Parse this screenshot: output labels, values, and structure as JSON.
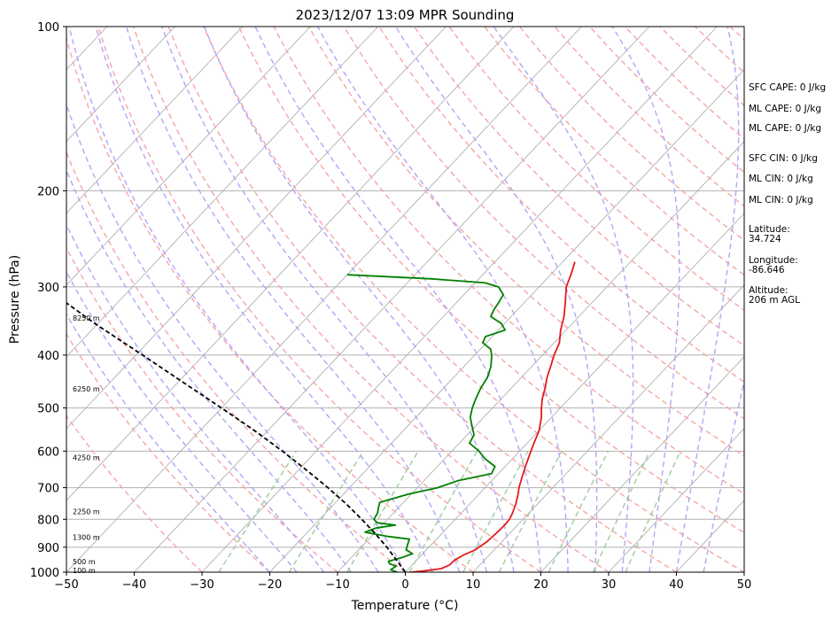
{
  "chart_data": {
    "type": "line",
    "title": "2023/12/07 13:09 MPR Sounding",
    "xlabel": "Temperature (°C)",
    "ylabel": "Pressure (hPa)",
    "xlim": [
      -50,
      50
    ],
    "ylim": [
      1000,
      100
    ],
    "yscale": "log",
    "x_ticks": [
      "−50",
      "−40",
      "−30",
      "−20",
      "−10",
      "0",
      "10",
      "20",
      "30",
      "40",
      "50"
    ],
    "y_ticks": [
      {
        "p": 100,
        "label": "100"
      },
      {
        "p": 200,
        "label": "200"
      },
      {
        "p": 300,
        "label": "300"
      },
      {
        "p": 400,
        "label": "400"
      },
      {
        "p": 500,
        "label": "500"
      },
      {
        "p": 600,
        "label": "600"
      },
      {
        "p": 700,
        "label": "700"
      },
      {
        "p": 800,
        "label": "800"
      },
      {
        "p": 900,
        "label": "900"
      },
      {
        "p": 1000,
        "label": "1000"
      }
    ],
    "grid": true,
    "series": [
      {
        "key": "temperature",
        "color": "#e41a1c",
        "points": [
          [
            1000,
            0.8
          ],
          [
            995,
            2.5
          ],
          [
            985,
            4.8
          ],
          [
            970,
            5.5
          ],
          [
            950,
            5.6
          ],
          [
            930,
            6.2
          ],
          [
            910,
            7.2
          ],
          [
            880,
            7.8
          ],
          [
            850,
            8.0
          ],
          [
            820,
            8.1
          ],
          [
            800,
            8.0
          ],
          [
            780,
            7.6
          ],
          [
            750,
            6.8
          ],
          [
            720,
            5.8
          ],
          [
            700,
            5.0
          ],
          [
            670,
            4.0
          ],
          [
            640,
            3.0
          ],
          [
            610,
            2.0
          ],
          [
            580,
            1.0
          ],
          [
            550,
            0.0
          ],
          [
            520,
            -1.5
          ],
          [
            500,
            -2.8
          ],
          [
            480,
            -4.0
          ],
          [
            460,
            -5.0
          ],
          [
            440,
            -6.2
          ],
          [
            420,
            -7.2
          ],
          [
            400,
            -8.3
          ],
          [
            380,
            -9.2
          ],
          [
            360,
            -10.8
          ],
          [
            340,
            -12.2
          ],
          [
            320,
            -14.0
          ],
          [
            300,
            -16.0
          ],
          [
            285,
            -17.0
          ],
          [
            270,
            -18.2
          ]
        ]
      },
      {
        "key": "dewpoint",
        "color": "#008000",
        "points": [
          [
            1000,
            -1.2
          ],
          [
            990,
            -2.5
          ],
          [
            975,
            -2.2
          ],
          [
            965,
            -3.5
          ],
          [
            955,
            -4.0
          ],
          [
            940,
            -2.5
          ],
          [
            925,
            -1.5
          ],
          [
            910,
            -3.0
          ],
          [
            890,
            -3.5
          ],
          [
            870,
            -4.0
          ],
          [
            860,
            -7.5
          ],
          [
            845,
            -11.5
          ],
          [
            830,
            -10.5
          ],
          [
            820,
            -8.0
          ],
          [
            812,
            -11.0
          ],
          [
            800,
            -12.0
          ],
          [
            780,
            -12.3
          ],
          [
            760,
            -13.0
          ],
          [
            745,
            -13.5
          ],
          [
            720,
            -10.5
          ],
          [
            700,
            -7.0
          ],
          [
            680,
            -5.0
          ],
          [
            660,
            -1.0
          ],
          [
            640,
            -1.5
          ],
          [
            620,
            -4.0
          ],
          [
            600,
            -6.0
          ],
          [
            580,
            -8.5
          ],
          [
            560,
            -9.0
          ],
          [
            540,
            -10.5
          ],
          [
            520,
            -12.0
          ],
          [
            500,
            -13.0
          ],
          [
            480,
            -13.8
          ],
          [
            460,
            -14.5
          ],
          [
            440,
            -15.0
          ],
          [
            420,
            -16.0
          ],
          [
            400,
            -17.5
          ],
          [
            390,
            -18.5
          ],
          [
            380,
            -20.5
          ],
          [
            370,
            -21.0
          ],
          [
            360,
            -19.0
          ],
          [
            350,
            -20.5
          ],
          [
            340,
            -23.0
          ],
          [
            330,
            -23.5
          ],
          [
            320,
            -23.8
          ],
          [
            310,
            -24.2
          ],
          [
            300,
            -26.0
          ],
          [
            295,
            -28.5
          ],
          [
            290,
            -37.0
          ],
          [
            285,
            -50.0
          ]
        ]
      },
      {
        "key": "parcel",
        "color": "#000000",
        "dashed": true,
        "points": [
          [
            1000,
            0.0
          ],
          [
            950,
            -3.0
          ],
          [
            900,
            -6.2
          ],
          [
            850,
            -9.8
          ],
          [
            800,
            -13.8
          ],
          [
            750,
            -18.2
          ],
          [
            700,
            -23.2
          ],
          [
            650,
            -28.8
          ],
          [
            600,
            -35.0
          ],
          [
            550,
            -42.0
          ],
          [
            500,
            -50.0
          ],
          [
            450,
            -59.0
          ],
          [
            400,
            -69.0
          ],
          [
            350,
            -80.5
          ],
          [
            300,
            -93.0
          ],
          [
            284,
            -97.0
          ]
        ]
      }
    ],
    "height_markers": [
      {
        "p": 992,
        "label": "100 m"
      },
      {
        "p": 957,
        "label": "500 m"
      },
      {
        "p": 863,
        "label": "1300 m"
      },
      {
        "p": 774,
        "label": "2250 m"
      },
      {
        "p": 616,
        "label": "4250 m"
      },
      {
        "p": 461,
        "label": "6250 m"
      },
      {
        "p": 342,
        "label": "8250 m"
      }
    ],
    "annotations": [
      {
        "key": "sfc_cape",
        "lines": [
          "SFC CAPE: 0 J/kg"
        ]
      },
      {
        "key": "ml_cape_1",
        "lines": [
          "ML CAPE: 0 J/kg"
        ]
      },
      {
        "key": "ml_cape_2",
        "lines": [
          "ML CAPE: 0 J/kg"
        ]
      },
      {
        "key": "sfc_cin",
        "lines": [
          "SFC CIN: 0 J/kg"
        ]
      },
      {
        "key": "ml_cin_1",
        "lines": [
          "ML CIN: 0 J/kg"
        ]
      },
      {
        "key": "ml_cin_2",
        "lines": [
          "ML CIN: 0 J/kg"
        ]
      },
      {
        "key": "latitude",
        "lines": [
          "Latitude:",
          "34.724"
        ]
      },
      {
        "key": "longitude",
        "lines": [
          "Longitude:",
          "-86.646"
        ]
      },
      {
        "key": "altitude",
        "lines": [
          "Altitude:",
          "206 m AGL"
        ]
      }
    ],
    "colors": {
      "isotherm": "#b0b0b0",
      "isobar": "#b0b0b0",
      "dry_adiabat": "#f4a6a6",
      "moist_adiabat": "#b3a6f4",
      "mixing_ratio": "#9ccc9c"
    }
  }
}
